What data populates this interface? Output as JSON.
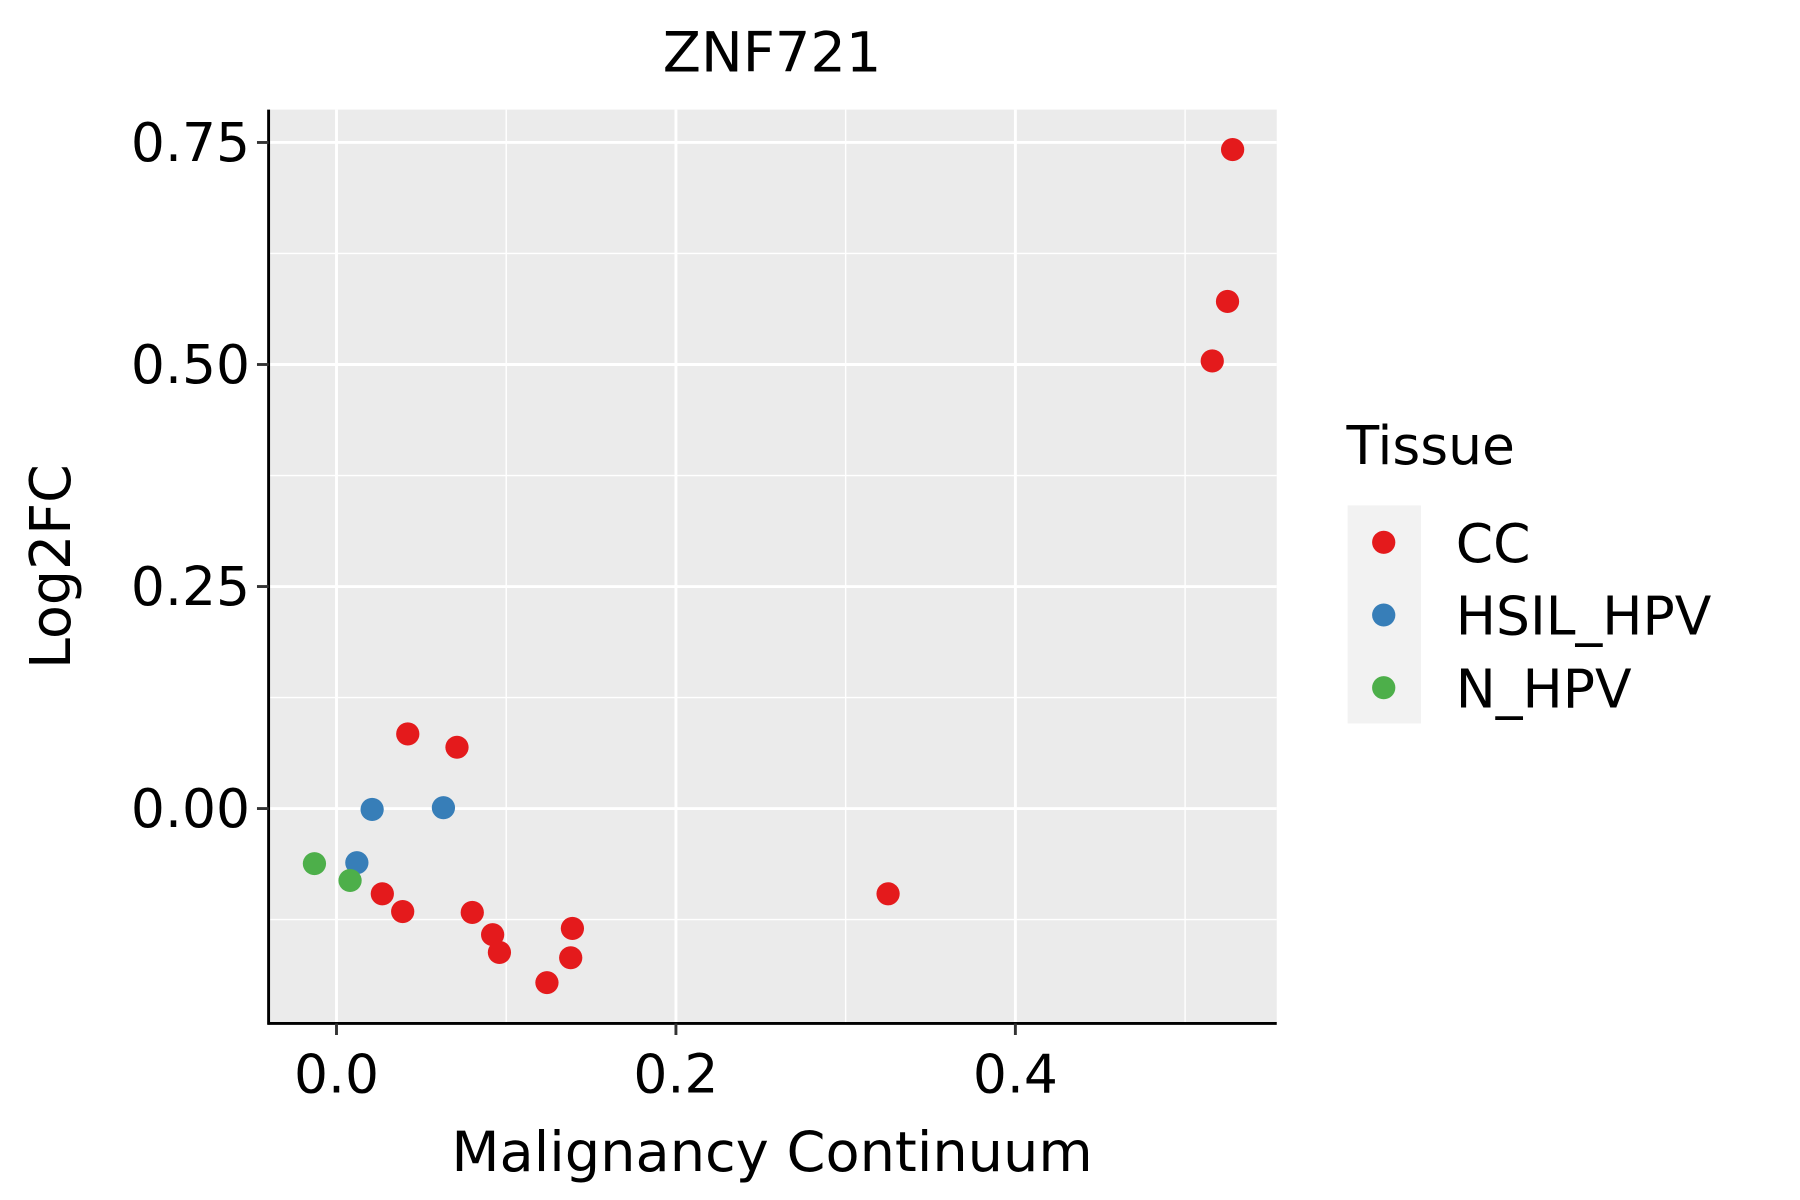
{
  "chart_data": {
    "type": "scatter",
    "title": "ZNF721",
    "xlabel": "Malignancy Continuum",
    "ylabel": "Log2FC",
    "xlim": [
      -0.04,
      0.554
    ],
    "ylim": [
      -0.242,
      0.787
    ],
    "xticks": [
      0.0,
      0.2,
      0.4
    ],
    "xtick_labels": [
      "0.0",
      "0.2",
      "0.4"
    ],
    "yticks": [
      0.0,
      0.25,
      0.5,
      0.75
    ],
    "ytick_labels": [
      "0.00",
      "0.25",
      "0.50",
      "0.75"
    ],
    "grid": true,
    "legend": {
      "title": "Tissue",
      "placement": "right"
    },
    "series": [
      {
        "name": "CC",
        "color": "#E41A1C",
        "points": [
          [
            0.528,
            0.742
          ],
          [
            0.525,
            0.571
          ],
          [
            0.516,
            0.504
          ],
          [
            0.042,
            0.084
          ],
          [
            0.071,
            0.069
          ],
          [
            0.325,
            -0.096
          ],
          [
            0.027,
            -0.096
          ],
          [
            0.039,
            -0.116
          ],
          [
            0.08,
            -0.117
          ],
          [
            0.092,
            -0.142
          ],
          [
            0.096,
            -0.162
          ],
          [
            0.139,
            -0.135
          ],
          [
            0.138,
            -0.168
          ],
          [
            0.124,
            -0.196
          ]
        ]
      },
      {
        "name": "HSIL_HPV",
        "color": "#377EB8",
        "points": [
          [
            0.021,
            -0.001
          ],
          [
            0.063,
            0.001
          ],
          [
            0.012,
            -0.061
          ]
        ]
      },
      {
        "name": "N_HPV",
        "color": "#4DAF4A",
        "points": [
          [
            -0.013,
            -0.062
          ],
          [
            0.008,
            -0.081
          ]
        ]
      }
    ]
  }
}
